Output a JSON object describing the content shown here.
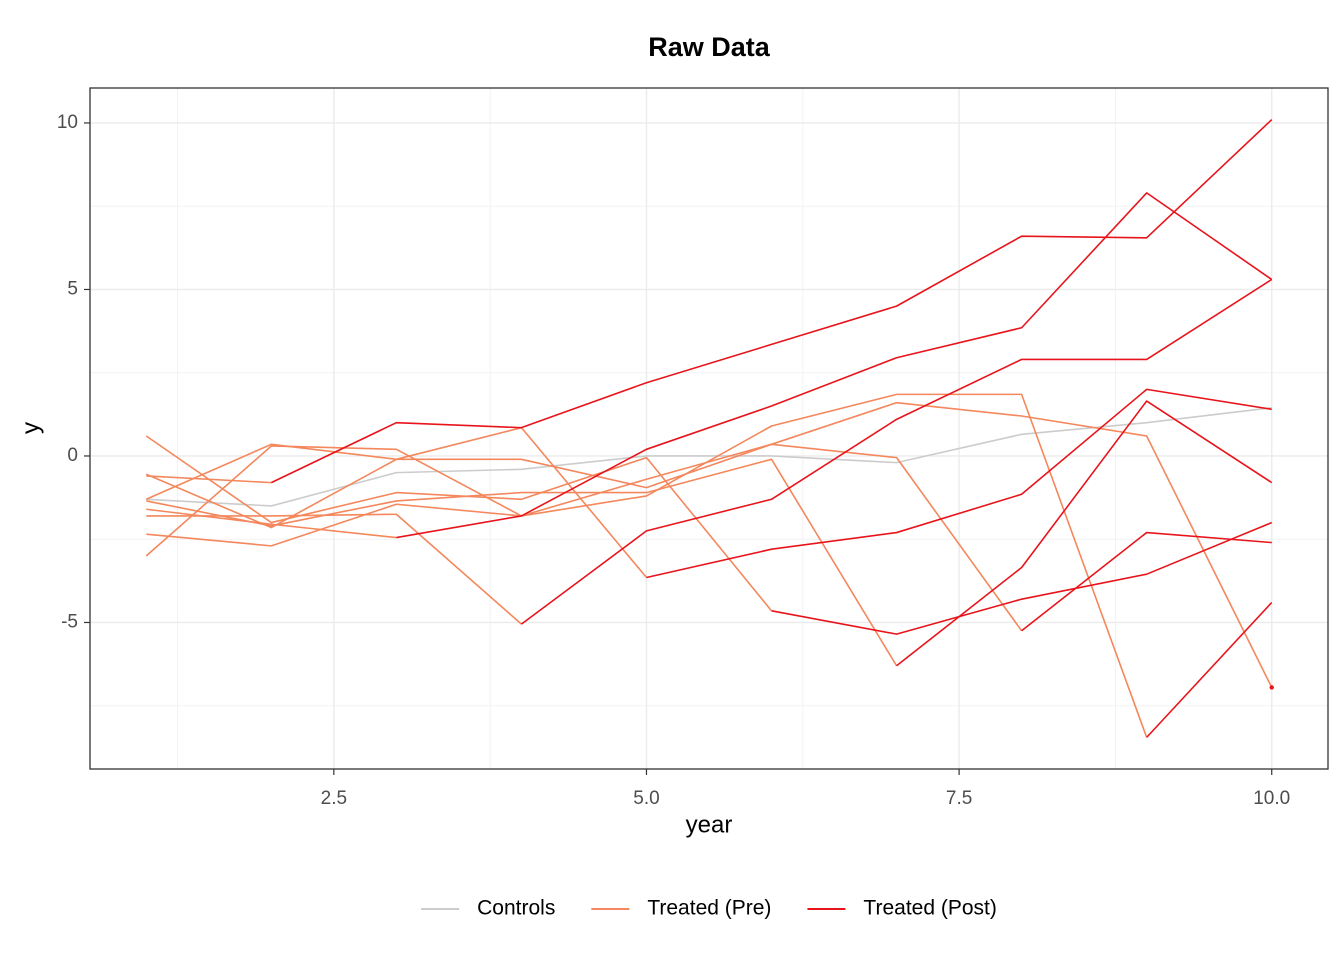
{
  "chart_data": {
    "type": "line",
    "title": "Raw Data",
    "x_label": "year",
    "y_label": "y",
    "x": [
      1,
      2,
      3,
      4,
      5,
      6,
      7,
      8,
      9,
      10
    ],
    "xlim": [
      0.55,
      10.45
    ],
    "ylim": [
      -9.4,
      11.05
    ],
    "xticks": [
      2.5,
      {
        "value": 5,
        "label": "5.0"
      },
      7.5,
      {
        "value": 10,
        "label": "10.0"
      }
    ],
    "yticks": [
      -5,
      0,
      5,
      10
    ],
    "x_minor_grid": [
      1.25,
      3.75,
      6.25,
      8.75
    ],
    "y_minor_grid": [
      -7.5,
      -2.5,
      2.5,
      7.5
    ],
    "grid": true,
    "legend_position": "bottom",
    "series": [
      {
        "name": "Controls",
        "color": "#cccccc",
        "lines": [
          [
            -1.3,
            -1.5,
            -0.5,
            -0.4,
            0.0,
            0.0,
            -0.2,
            0.65,
            1.0,
            1.45
          ]
        ]
      },
      {
        "name": "Treated (Pre)",
        "color": "#f4875c",
        "lines": [
          [
            -0.6,
            -0.8,
            null,
            null,
            null,
            null,
            null,
            null,
            null,
            null
          ],
          [
            -1.6,
            -2.05,
            -2.45,
            null,
            null,
            null,
            null,
            null,
            null,
            null
          ],
          [
            -1.8,
            -1.8,
            -1.75,
            -5.05,
            null,
            null,
            null,
            null,
            null,
            null
          ],
          [
            -1.3,
            0.35,
            -0.1,
            0.85,
            -3.65,
            null,
            null,
            null,
            null,
            null
          ],
          [
            0.6,
            -2.0,
            -1.1,
            -1.3,
            -0.05,
            -4.65,
            null,
            null,
            null,
            null
          ],
          [
            -1.35,
            -2.1,
            -1.35,
            -1.1,
            -1.1,
            -0.1,
            -6.3,
            null,
            null,
            null
          ],
          [
            -2.35,
            -2.7,
            -1.45,
            -1.8,
            -0.7,
            0.35,
            -0.05,
            -5.25,
            null,
            null
          ],
          [
            -3.0,
            0.3,
            0.2,
            -1.8,
            -1.2,
            0.9,
            1.85,
            1.85,
            -8.45,
            null
          ],
          [
            -0.55,
            -2.15,
            -0.1,
            -0.1,
            -0.95,
            0.35,
            1.6,
            1.2,
            0.6,
            -6.95
          ]
        ]
      },
      {
        "name": "Treated (Post)",
        "color": "#e8141b",
        "lines": [
          [
            null,
            -0.8,
            1.0,
            0.85,
            2.2,
            3.35,
            4.5,
            6.6,
            6.55,
            10.1
          ],
          [
            null,
            null,
            -2.45,
            -1.8,
            0.2,
            1.5,
            2.95,
            3.85,
            7.9,
            5.3
          ],
          [
            null,
            null,
            null,
            -5.05,
            -2.25,
            -1.3,
            1.1,
            2.9,
            2.9,
            5.3
          ],
          [
            null,
            null,
            null,
            null,
            -3.65,
            -2.8,
            -2.3,
            -1.15,
            2.0,
            1.4
          ],
          [
            null,
            null,
            null,
            null,
            null,
            -4.65,
            -5.35,
            -4.3,
            -3.55,
            -2.0
          ],
          [
            null,
            null,
            null,
            null,
            null,
            null,
            -6.3,
            -3.35,
            1.65,
            -0.8
          ],
          [
            null,
            null,
            null,
            null,
            null,
            null,
            null,
            -5.25,
            -2.3,
            -2.6
          ],
          [
            null,
            null,
            null,
            null,
            null,
            null,
            null,
            null,
            -8.45,
            -4.4
          ],
          [
            null,
            null,
            null,
            null,
            null,
            null,
            null,
            null,
            null,
            -6.95
          ]
        ]
      }
    ]
  }
}
